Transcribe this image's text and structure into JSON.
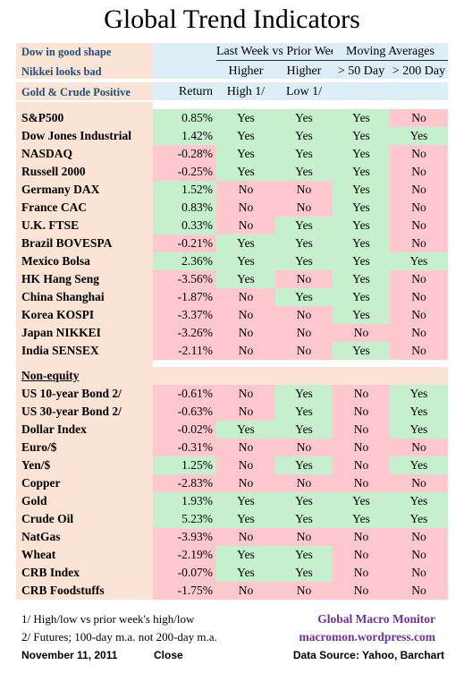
{
  "title": "Global Trend Indicators",
  "header": {
    "notes": [
      "Dow in good shape",
      "Nikkei looks bad",
      "Gold & Crude Positive"
    ],
    "group1": "Last Week vs Prior Week",
    "group2": "Moving Averages",
    "higher": "Higher",
    "high_label": "High 1/",
    "low_label": "Low  1/",
    "ma50": "> 50 Day",
    "ma200": "> 200 Day",
    "return": "Return"
  },
  "equities": [
    {
      "name": "S&P500",
      "ret": "0.85%",
      "high": "Yes",
      "low": "Yes",
      "ma50": "Yes",
      "ma200": "No"
    },
    {
      "name": "Dow Jones Industrial",
      "ret": "1.42%",
      "high": "Yes",
      "low": "Yes",
      "ma50": "Yes",
      "ma200": "Yes"
    },
    {
      "name": "NASDAQ",
      "ret": "-0.28%",
      "high": "Yes",
      "low": "Yes",
      "ma50": "Yes",
      "ma200": "No"
    },
    {
      "name": "Russell 2000",
      "ret": "-0.25%",
      "high": "Yes",
      "low": "Yes",
      "ma50": "Yes",
      "ma200": "No"
    },
    {
      "name": "Germany DAX",
      "ret": "1.52%",
      "high": "No",
      "low": "No",
      "ma50": "Yes",
      "ma200": "No"
    },
    {
      "name": "France CAC",
      "ret": "0.83%",
      "high": "No",
      "low": "No",
      "ma50": "Yes",
      "ma200": "No"
    },
    {
      "name": "U.K. FTSE",
      "ret": "0.33%",
      "high": "No",
      "low": "Yes",
      "ma50": "Yes",
      "ma200": "No"
    },
    {
      "name": "Brazil BOVESPA",
      "ret": "-0.21%",
      "high": "Yes",
      "low": "Yes",
      "ma50": "Yes",
      "ma200": "No"
    },
    {
      "name": "Mexico Bolsa",
      "ret": "2.36%",
      "high": "Yes",
      "low": "Yes",
      "ma50": "Yes",
      "ma200": "Yes"
    },
    {
      "name": "HK  Hang Seng",
      "ret": "-3.56%",
      "high": "Yes",
      "low": "No",
      "ma50": "Yes",
      "ma200": "No"
    },
    {
      "name": "China Shanghai",
      "ret": "-1.87%",
      "high": "No",
      "low": "Yes",
      "ma50": "Yes",
      "ma200": "No"
    },
    {
      "name": "Korea KOSPI",
      "ret": "-3.37%",
      "high": "No",
      "low": "No",
      "ma50": "Yes",
      "ma200": "No"
    },
    {
      "name": "Japan NIKKEI",
      "ret": "-3.26%",
      "high": "No",
      "low": "No",
      "ma50": "No",
      "ma200": "No"
    },
    {
      "name": "India SENSEX",
      "ret": "-2.11%",
      "high": "No",
      "low": "No",
      "ma50": "Yes",
      "ma200": "No"
    }
  ],
  "section_label": "Non-equity",
  "non_equity": [
    {
      "name": "US 10-year Bond 2/",
      "ret": "-0.61%",
      "high": "No",
      "low": "Yes",
      "ma50": "No",
      "ma200": "Yes"
    },
    {
      "name": "US 30-year Bond 2/",
      "ret": "-0.63%",
      "high": "No",
      "low": "Yes",
      "ma50": "No",
      "ma200": "Yes"
    },
    {
      "name": "Dollar Index",
      "ret": "-0.02%",
      "high": "Yes",
      "low": "Yes",
      "ma50": "No",
      "ma200": "Yes"
    },
    {
      "name": "Euro/$",
      "ret": "-0.31%",
      "high": "No",
      "low": "No",
      "ma50": "No",
      "ma200": "No"
    },
    {
      "name": "Yen/$",
      "ret": "1.25%",
      "high": "No",
      "low": "Yes",
      "ma50": "No",
      "ma200": "Yes"
    },
    {
      "name": "Copper",
      "ret": "-2.83%",
      "high": "No",
      "low": "No",
      "ma50": "No",
      "ma200": "No"
    },
    {
      "name": "Gold",
      "ret": "1.93%",
      "high": "Yes",
      "low": "Yes",
      "ma50": "Yes",
      "ma200": "Yes"
    },
    {
      "name": "Crude Oil",
      "ret": "5.23%",
      "high": "Yes",
      "low": "Yes",
      "ma50": "Yes",
      "ma200": "Yes"
    },
    {
      "name": "NatGas",
      "ret": "-3.93%",
      "high": "No",
      "low": "No",
      "ma50": "No",
      "ma200": "No"
    },
    {
      "name": "Wheat",
      "ret": "-2.19%",
      "high": "Yes",
      "low": "Yes",
      "ma50": "No",
      "ma200": "No"
    },
    {
      "name": "CRB Index",
      "ret": "-0.07%",
      "high": "Yes",
      "low": "Yes",
      "ma50": "No",
      "ma200": "No"
    },
    {
      "name": "CRB Foodstuffs",
      "ret": "-1.75%",
      "high": "No",
      "low": "No",
      "ma50": "No",
      "ma200": "No"
    }
  ],
  "footer": {
    "note1": "1/  High/low vs prior week's high/low",
    "note2": "2/  Futures;  100-day m.a. not 200-day m.a.",
    "date": "November 11, 2011",
    "close": "Close",
    "brand": "Global Macro Monitor",
    "site": "macromon.wordpress.com",
    "source": "Data Source: Yahoo, Barchart"
  }
}
